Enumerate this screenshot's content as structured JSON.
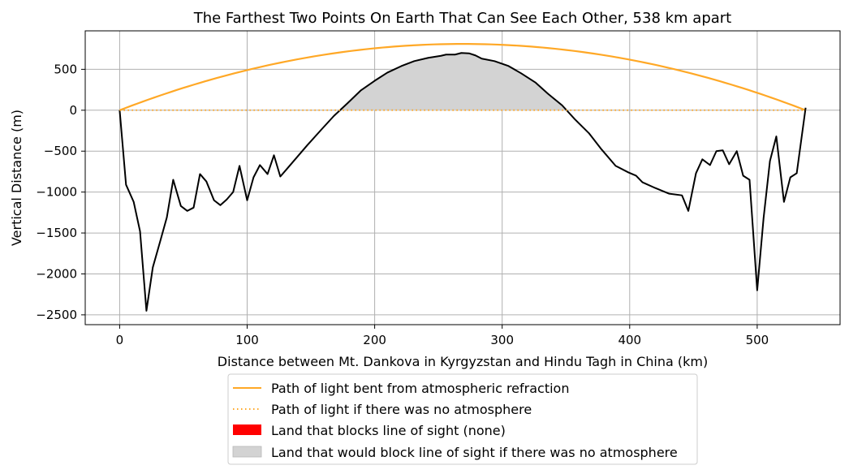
{
  "chart_data": {
    "type": "line",
    "title": "The Farthest Two Points On Earth That Can See Each Other, 538 km apart",
    "xlabel": "Distance between Mt. Dankova in Kyrgyzstan and Hindu Tagh in China (km)",
    "ylabel": "Vertical Distance (m)",
    "xlim": [
      -27,
      565
    ],
    "ylim": [
      -2620,
      970
    ],
    "xticks": [
      0,
      100,
      200,
      300,
      400,
      500
    ],
    "yticks": [
      -2500,
      -2000,
      -1500,
      -1000,
      -500,
      0,
      500
    ],
    "tick_labels_x": [
      "0",
      "100",
      "200",
      "300",
      "400",
      "500"
    ],
    "tick_labels_y": [
      "−2500",
      "−2000",
      "−1500",
      "−1000",
      "−500",
      "0",
      "500"
    ],
    "grid": true,
    "legend_position": "below-center",
    "series": [
      {
        "name": "Path of light bent from atmospheric refraction",
        "style": "solid",
        "color": "#ffa826",
        "arc": {
          "x_start": 0,
          "x_end": 538,
          "y_start": 0,
          "y_end": 0,
          "peak_y": 810
        }
      },
      {
        "name": "Path of light if there was no atmosphere",
        "style": "dotted",
        "color": "#ffa826",
        "x": [
          0,
          538
        ],
        "y": [
          0,
          0
        ]
      },
      {
        "name": "Terrain",
        "style": "solid",
        "color": "#000000",
        "x": [
          0,
          5,
          11,
          16,
          21,
          26,
          32,
          37,
          42,
          48,
          53,
          58,
          63,
          68,
          74,
          79,
          84,
          89,
          94,
          100,
          105,
          110,
          116,
          121,
          126,
          131,
          136,
          147,
          158,
          168,
          179,
          189,
          200,
          210,
          221,
          231,
          242,
          252,
          256,
          263,
          268,
          274,
          279,
          284,
          294,
          305,
          315,
          326,
          336,
          347,
          357,
          368,
          378,
          389,
          399,
          405,
          410,
          420,
          431,
          441,
          446,
          452,
          457,
          463,
          468,
          473,
          478,
          484,
          489,
          494,
          500,
          505,
          510,
          515,
          521,
          526,
          531,
          538
        ],
        "y": [
          0,
          -910,
          -1120,
          -1480,
          -2450,
          -1920,
          -1590,
          -1310,
          -850,
          -1170,
          -1230,
          -1190,
          -780,
          -870,
          -1100,
          -1160,
          -1090,
          -1000,
          -680,
          -1100,
          -820,
          -670,
          -780,
          -550,
          -810,
          -720,
          -630,
          -430,
          -240,
          -70,
          90,
          240,
          360,
          460,
          540,
          600,
          640,
          665,
          680,
          680,
          700,
          695,
          670,
          630,
          600,
          540,
          450,
          340,
          200,
          60,
          -110,
          -280,
          -480,
          -680,
          -760,
          -800,
          -880,
          -950,
          -1020,
          -1040,
          -1230,
          -770,
          -600,
          -670,
          -500,
          -490,
          -660,
          -500,
          -800,
          -850,
          -2200,
          -1320,
          -620,
          -320,
          -1120,
          -820,
          -770,
          30
        ]
      }
    ],
    "legend": [
      {
        "label": "Path of light bent from atmospheric refraction",
        "marker": "line-solid",
        "color": "#ffa826"
      },
      {
        "label": "Path of light if there was no atmosphere",
        "marker": "line-dotted",
        "color": "#ffa826"
      },
      {
        "label": "Land that blocks line of sight (none)",
        "marker": "patch",
        "color": "#ff0000"
      },
      {
        "label": "Land that would block line of sight if there was no atmosphere",
        "marker": "patch",
        "color": "#d3d3d3"
      }
    ],
    "fill_color": "#d3d3d3"
  }
}
